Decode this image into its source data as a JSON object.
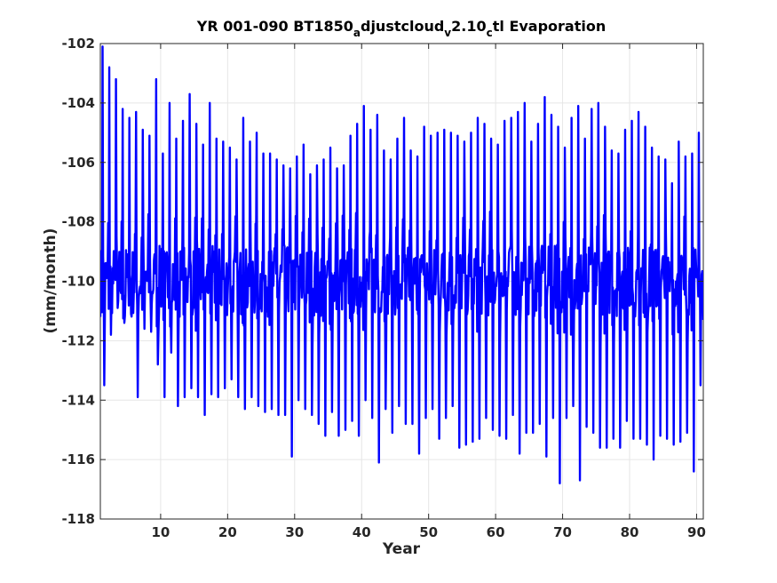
{
  "chart_data": {
    "type": "line",
    "title": {
      "part1": "YR 001-090 BT1850",
      "sub1": "a",
      "part2": "djustcloud",
      "sub2": "v",
      "part3": "2.10",
      "sub3": "c",
      "part4": "tl Evaporation"
    },
    "xlabel": "Year",
    "ylabel": "(mm/month)",
    "xlim": [
      1,
      91
    ],
    "ylim": [
      -118,
      -102
    ],
    "xticks": [
      10,
      20,
      30,
      40,
      50,
      60,
      70,
      80,
      90
    ],
    "yticks": [
      -118,
      -116,
      -114,
      -112,
      -110,
      -108,
      -106,
      -104,
      -102
    ],
    "grid": true,
    "line_color": "#0000ff",
    "annual_extremes": {
      "years": [
        1,
        2,
        3,
        4,
        5,
        6,
        7,
        8,
        9,
        10,
        11,
        12,
        13,
        14,
        15,
        16,
        17,
        18,
        19,
        20,
        21,
        22,
        23,
        24,
        25,
        26,
        27,
        28,
        29,
        30,
        31,
        32,
        33,
        34,
        35,
        36,
        37,
        38,
        39,
        40,
        41,
        42,
        43,
        44,
        45,
        46,
        47,
        48,
        49,
        50,
        51,
        52,
        53,
        54,
        55,
        56,
        57,
        58,
        59,
        60,
        61,
        62,
        63,
        64,
        65,
        66,
        67,
        68,
        69,
        70,
        71,
        72,
        73,
        74,
        75,
        76,
        77,
        78,
        79,
        80,
        81,
        82,
        83,
        84,
        85,
        86,
        87,
        88,
        89,
        90
      ],
      "max": [
        -102.1,
        -102.8,
        -103.2,
        -104.2,
        -104.5,
        -104.3,
        -104.9,
        -105.1,
        -103.2,
        -105.7,
        -104.0,
        -105.2,
        -104.6,
        -103.7,
        -104.7,
        -105.4,
        -104.0,
        -105.2,
        -105.3,
        -105.5,
        -105.9,
        -104.5,
        -105.3,
        -105.0,
        -105.7,
        -105.7,
        -105.9,
        -106.1,
        -106.2,
        -105.8,
        -105.4,
        -106.4,
        -106.1,
        -105.9,
        -105.5,
        -106.2,
        -106.1,
        -105.1,
        -104.7,
        -104.1,
        -104.9,
        -104.4,
        -105.6,
        -105.9,
        -105.2,
        -104.5,
        -105.6,
        -105.8,
        -104.8,
        -105.1,
        -105.0,
        -104.9,
        -105.0,
        -105.1,
        -105.3,
        -105.0,
        -104.5,
        -104.7,
        -105.2,
        -105.4,
        -104.6,
        -104.5,
        -104.3,
        -104.0,
        -105.3,
        -104.7,
        -103.8,
        -104.4,
        -104.8,
        -105.5,
        -104.5,
        -104.1,
        -105.2,
        -104.2,
        -104.0,
        -104.8,
        -105.6,
        -105.7,
        -104.9,
        -104.6,
        -104.3,
        -104.8,
        -105.5,
        -105.8,
        -105.9,
        -106.7,
        -105.3,
        -105.8,
        -105.7,
        -105.0
      ],
      "min": [
        -113.5,
        -111.8,
        -110.9,
        -111.4,
        -111.1,
        -113.9,
        -111.6,
        -111.7,
        -112.8,
        -113.9,
        -112.4,
        -114.2,
        -113.9,
        -113.6,
        -113.9,
        -114.5,
        -113.8,
        -113.9,
        -113.6,
        -113.3,
        -113.9,
        -114.3,
        -113.9,
        -114.2,
        -114.4,
        -114.3,
        -114.5,
        -114.5,
        -115.9,
        -114.0,
        -114.3,
        -114.5,
        -114.8,
        -115.2,
        -114.4,
        -115.2,
        -115.0,
        -114.7,
        -115.2,
        -114.0,
        -114.6,
        -116.1,
        -114.3,
        -115.1,
        -114.2,
        -114.8,
        -114.8,
        -115.8,
        -114.6,
        -114.3,
        -115.3,
        -114.6,
        -114.2,
        -115.6,
        -115.5,
        -115.4,
        -115.3,
        -114.6,
        -115.0,
        -115.2,
        -115.3,
        -114.5,
        -115.8,
        -115.1,
        -115.1,
        -114.8,
        -115.9,
        -114.6,
        -116.8,
        -114.6,
        -114.2,
        -116.7,
        -114.9,
        -115.1,
        -115.6,
        -115.6,
        -115.3,
        -115.6,
        -114.7,
        -115.3,
        -115.3,
        -115.5,
        -116.0,
        -115.2,
        -115.3,
        -115.5,
        -115.4,
        -115.1,
        -116.4,
        -113.5
      ],
      "mid": -110.0
    }
  }
}
